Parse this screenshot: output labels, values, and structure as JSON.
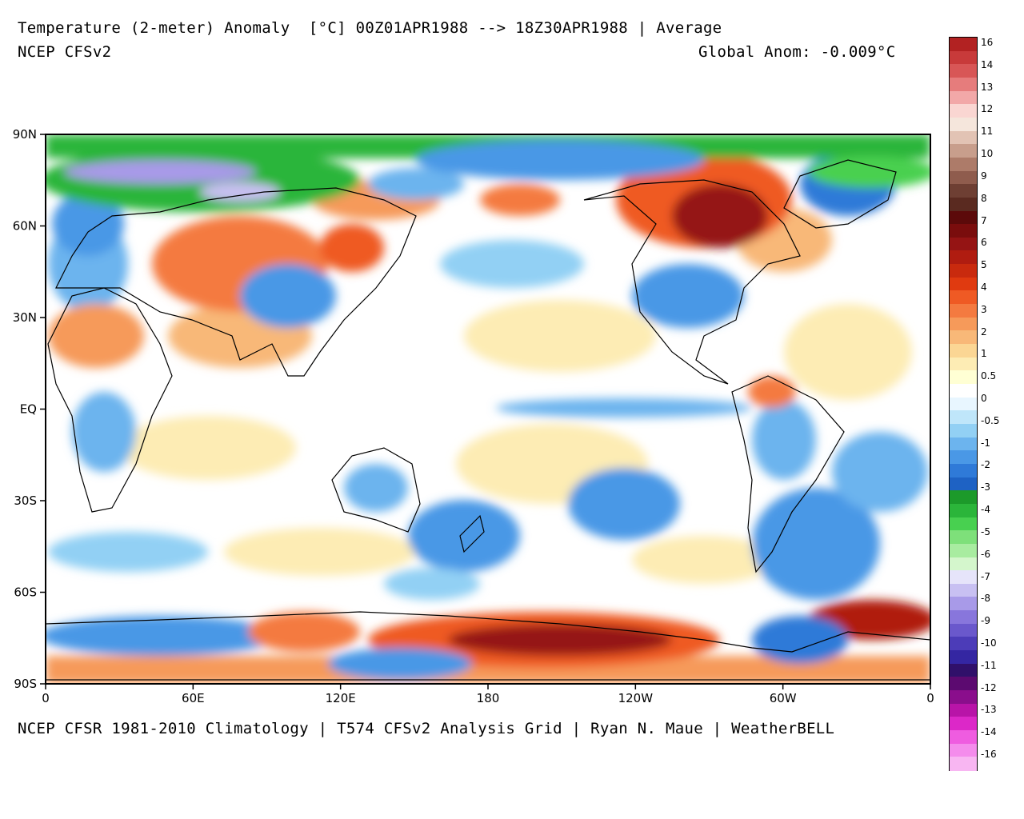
{
  "header": {
    "title": "Temperature (2-meter) Anomaly  [°C] 00Z01APR1988 --> 18Z30APR1988 | Average",
    "model": "NCEP CFSv2",
    "global_anom": "Global Anom: -0.009°C"
  },
  "footer": {
    "credits": "NCEP CFSR 1981-2010 Climatology | T574 CFSv2 Analysis Grid | Ryan N. Maue | WeatherBELL"
  },
  "axes": {
    "lat_labels": [
      "90N",
      "60N",
      "30N",
      "EQ",
      "30S",
      "60S",
      "90S"
    ],
    "lon_labels": [
      "0",
      "60E",
      "120E",
      "180",
      "120W",
      "60W",
      "0"
    ]
  },
  "colorbar": {
    "labels": [
      "16",
      "14",
      "13",
      "12",
      "11",
      "10",
      "9",
      "8",
      "7",
      "6",
      "5",
      "4",
      "3",
      "2",
      "1",
      "0.5",
      "0",
      "-0.5",
      "-1",
      "-2",
      "-3",
      "-4",
      "-5",
      "-6",
      "-7",
      "-8",
      "-9",
      "-10",
      "-11",
      "-12",
      "-13",
      "-14",
      "-16"
    ],
    "colors": [
      "#b22222",
      "#c83a3a",
      "#d85656",
      "#e67c7c",
      "#f2a8a8",
      "#fad6d2",
      "#f5e6dc",
      "#e2c3b4",
      "#c89e8c",
      "#ad7b69",
      "#8f5c4d",
      "#6e3f33",
      "#5a2a20",
      "#5c0a0a",
      "#7a0d0d",
      "#951414",
      "#b01c10",
      "#c92a0e",
      "#e03a10",
      "#ef5a24",
      "#f47a40",
      "#f69a5a",
      "#f8b878",
      "#fbd694",
      "#fdecb4",
      "#ffffd4",
      "#ffffff",
      "#e8f6ff",
      "#bfe6fa",
      "#92d0f4",
      "#6cb4ee",
      "#4a98e6",
      "#2f7ad8",
      "#1e62c4",
      "#1c9a2a",
      "#2bb53a",
      "#48d050",
      "#7ee07a",
      "#a8eca0",
      "#d4f6cc",
      "#e6e4fa",
      "#c8c0f2",
      "#a89ae8",
      "#8876dc",
      "#6a58cc",
      "#4c3cb8",
      "#3426a2",
      "#30106a",
      "#5c0a70",
      "#8a0e8c",
      "#b814a8",
      "#dc28c8",
      "#ef5ce0",
      "#f48cec",
      "#f8b6f2"
    ]
  },
  "map_colors": {
    "ocean_warm": "#fdecb4",
    "ocean_cool": "#bfe6fa",
    "blue": "#4a98e6",
    "deep_blue": "#2f7ad8",
    "red": "#ef5a24",
    "dark_red": "#951414",
    "orange": "#f69a5a",
    "green": "#2bb53a",
    "purple": "#a89ae8",
    "coast": "#000000"
  }
}
